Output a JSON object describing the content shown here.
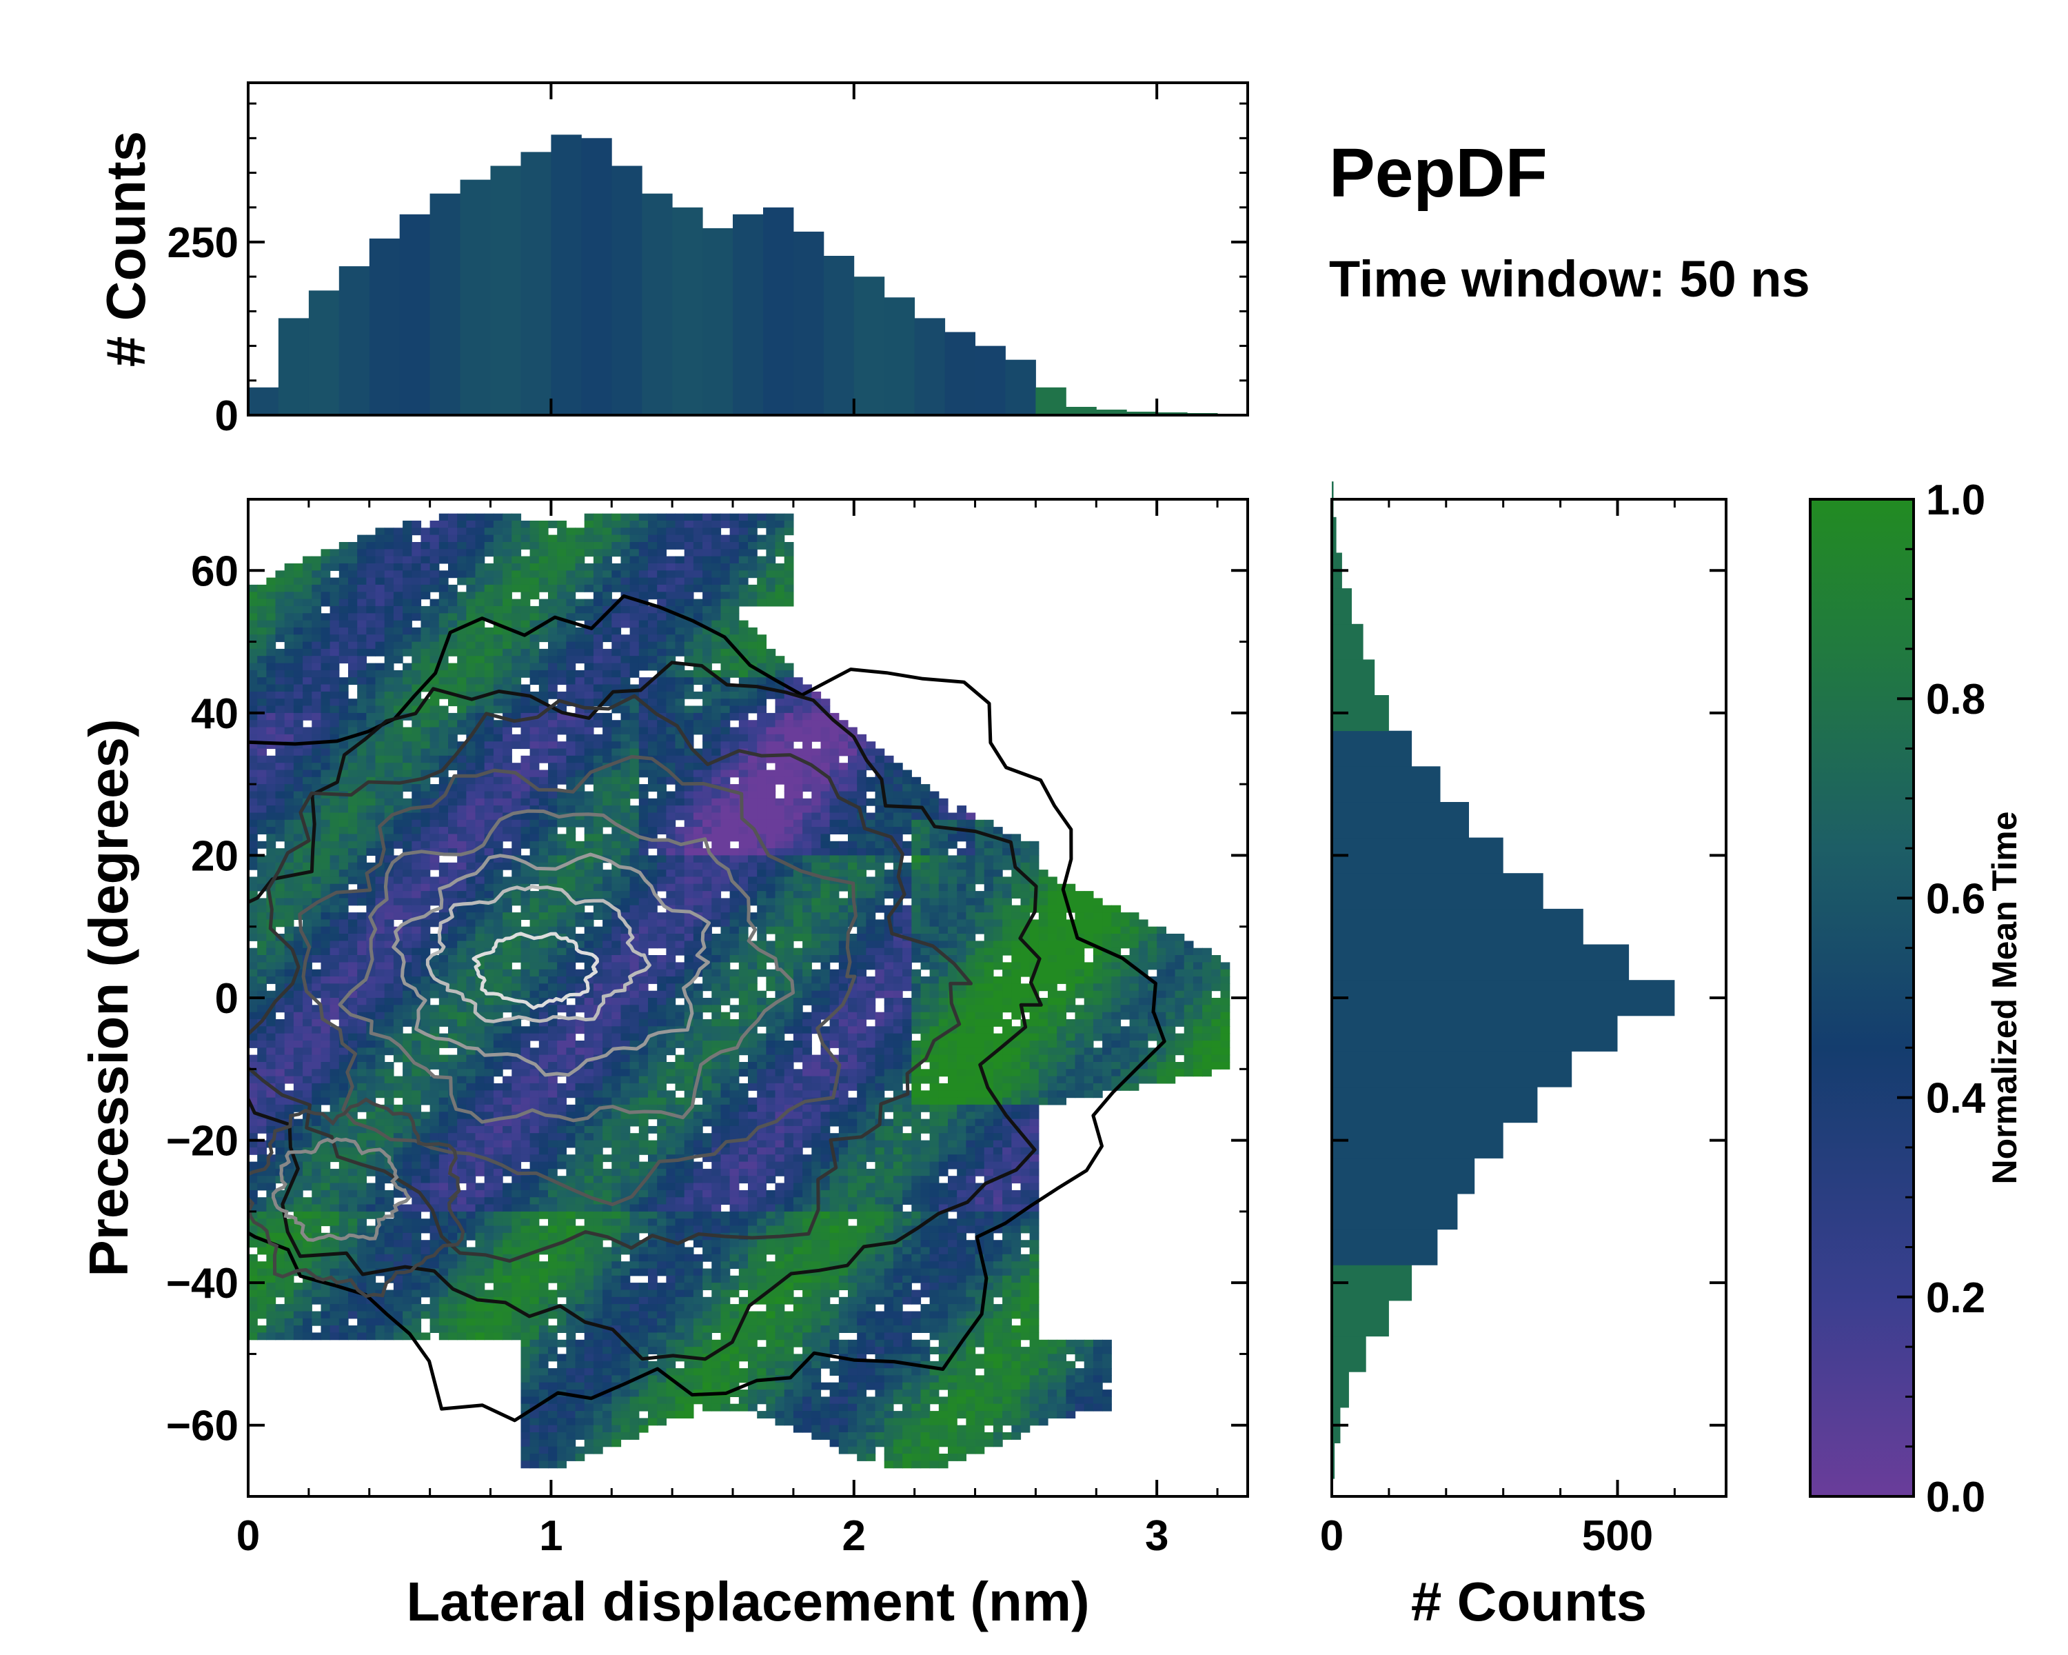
{
  "chart_data": {
    "type": "heatmap",
    "title": "PepDF",
    "subtitle": "Time window: 50 ns",
    "main": {
      "xlabel": "Lateral displacement (nm)",
      "ylabel": "Precession (degrees)",
      "xlim": [
        0,
        3.3
      ],
      "ylim": [
        -70,
        70
      ],
      "xticks": [
        0,
        1,
        2,
        3
      ],
      "xtick_labels": [
        "0",
        "1",
        "2",
        "3"
      ],
      "yticks": [
        -60,
        -40,
        -20,
        0,
        20,
        40,
        60
      ],
      "ytick_labels": [
        "−60",
        "−40",
        "−20",
        "0",
        "20",
        "40",
        "60"
      ],
      "value_meaning": "Normalized Mean Time per (displacement, precession) bin with density contours"
    },
    "top_histogram": {
      "type": "bar",
      "ylabel": "# Counts",
      "ylim": [
        0,
        480
      ],
      "yticks": [
        0,
        250
      ],
      "ytick_labels": [
        "0",
        "250"
      ],
      "x": [
        0.05,
        0.15,
        0.25,
        0.35,
        0.45,
        0.55,
        0.65,
        0.75,
        0.85,
        0.95,
        1.05,
        1.15,
        1.25,
        1.35,
        1.45,
        1.55,
        1.65,
        1.75,
        1.85,
        1.95,
        2.05,
        2.15,
        2.25,
        2.35,
        2.45,
        2.55,
        2.65,
        2.75,
        2.85,
        2.95,
        3.05,
        3.15,
        3.25
      ],
      "counts": [
        40,
        140,
        180,
        215,
        255,
        290,
        320,
        340,
        360,
        380,
        405,
        400,
        360,
        320,
        300,
        270,
        290,
        300,
        265,
        230,
        200,
        170,
        140,
        120,
        100,
        80,
        40,
        12,
        8,
        5,
        4,
        3,
        2
      ]
    },
    "right_histogram": {
      "type": "bar",
      "orientation": "horizontal",
      "xlabel": "# Counts",
      "xlim": [
        0,
        690
      ],
      "xticks": [
        0,
        500
      ],
      "xtick_labels": [
        "0",
        "500"
      ],
      "y": [
        -65,
        -60,
        -55,
        -50,
        -45,
        -40,
        -35,
        -30,
        -25,
        -20,
        -15,
        -10,
        -5,
        0,
        5,
        10,
        15,
        20,
        25,
        30,
        35,
        40,
        45,
        50,
        55,
        60,
        65,
        70
      ],
      "counts": [
        5,
        15,
        30,
        60,
        100,
        140,
        185,
        220,
        250,
        300,
        360,
        420,
        500,
        600,
        520,
        440,
        370,
        300,
        240,
        190,
        140,
        100,
        75,
        55,
        35,
        18,
        8,
        3
      ]
    },
    "colorbar": {
      "label": "Normalized Mean Time",
      "range": [
        0.0,
        1.0
      ],
      "ticks": [
        0.0,
        0.2,
        0.4,
        0.6,
        0.8,
        1.0
      ],
      "tick_labels": [
        "0.0",
        "0.2",
        "0.4",
        "0.6",
        "0.8",
        "1.0"
      ],
      "colors": [
        "#6a3d9a",
        "#3a3f8f",
        "#143d6e",
        "#1d5e66",
        "#217a3f",
        "#228b22"
      ]
    }
  }
}
